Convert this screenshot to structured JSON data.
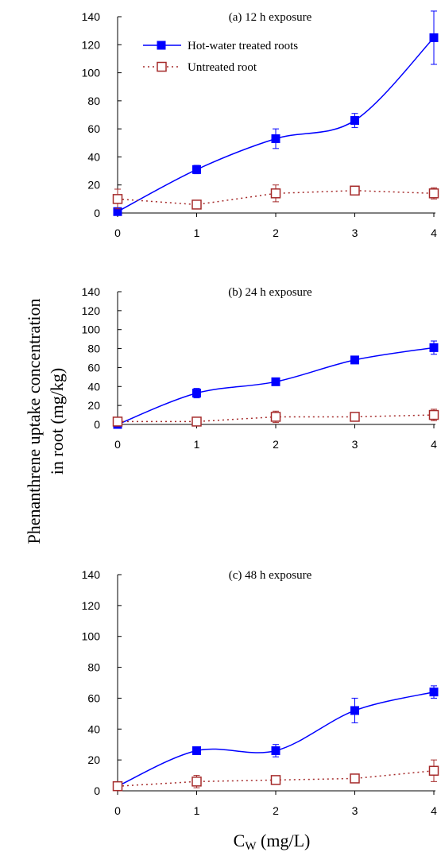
{
  "chart_data": {
    "type": "line",
    "ylabel_line1": "Phenanthrene uptake concentration",
    "ylabel_line2": "in root (mg/kg)",
    "xlabel_main": "C",
    "xlabel_sub": "W",
    "xlabel_unit": " (mg/L)",
    "legend": {
      "treated": "Hot-water treated roots",
      "untreated": "Untreated root"
    },
    "colors": {
      "treated": "#0000ff",
      "untreated": "#a52a2a"
    },
    "x_ticks": [
      0,
      1,
      2,
      3,
      4
    ],
    "y_ticks": [
      0,
      20,
      40,
      60,
      80,
      100,
      120,
      140
    ],
    "xlim": [
      0,
      4
    ],
    "ylim": [
      0,
      140
    ],
    "panels": [
      {
        "title": "(a) 12 h exposure",
        "x": [
          0,
          1,
          2,
          3,
          4
        ],
        "series": [
          {
            "name": "Hot-water treated roots",
            "values": [
              1,
              31,
              53,
              66,
              125
            ],
            "errors": [
              0,
              3,
              7,
              5,
              19
            ]
          },
          {
            "name": "Untreated root",
            "values": [
              10,
              6,
              14,
              16,
              14
            ],
            "errors": [
              7,
              1,
              6,
              1,
              4
            ]
          }
        ]
      },
      {
        "title": "(b) 24 h exposure",
        "x": [
          0,
          1,
          2,
          3,
          4
        ],
        "series": [
          {
            "name": "Hot-water treated roots",
            "values": [
              0,
              33,
              45,
              68,
              81
            ],
            "errors": [
              0,
              5,
              3,
              4,
              7
            ]
          },
          {
            "name": "Untreated root",
            "values": [
              3,
              3,
              8,
              8,
              10
            ],
            "errors": [
              2,
              1,
              6,
              2,
              6
            ]
          }
        ]
      },
      {
        "title": "(c) 48 h exposure",
        "x": [
          0,
          1,
          2,
          3,
          4
        ],
        "series": [
          {
            "name": "Hot-water treated roots",
            "values": [
              3,
              26,
              26,
              52,
              64
            ],
            "errors": [
              0,
              2,
              4,
              8,
              4
            ]
          },
          {
            "name": "Untreated root",
            "values": [
              3,
              6,
              7,
              8,
              13
            ],
            "errors": [
              1,
              4,
              1,
              1,
              7
            ]
          }
        ]
      }
    ]
  }
}
